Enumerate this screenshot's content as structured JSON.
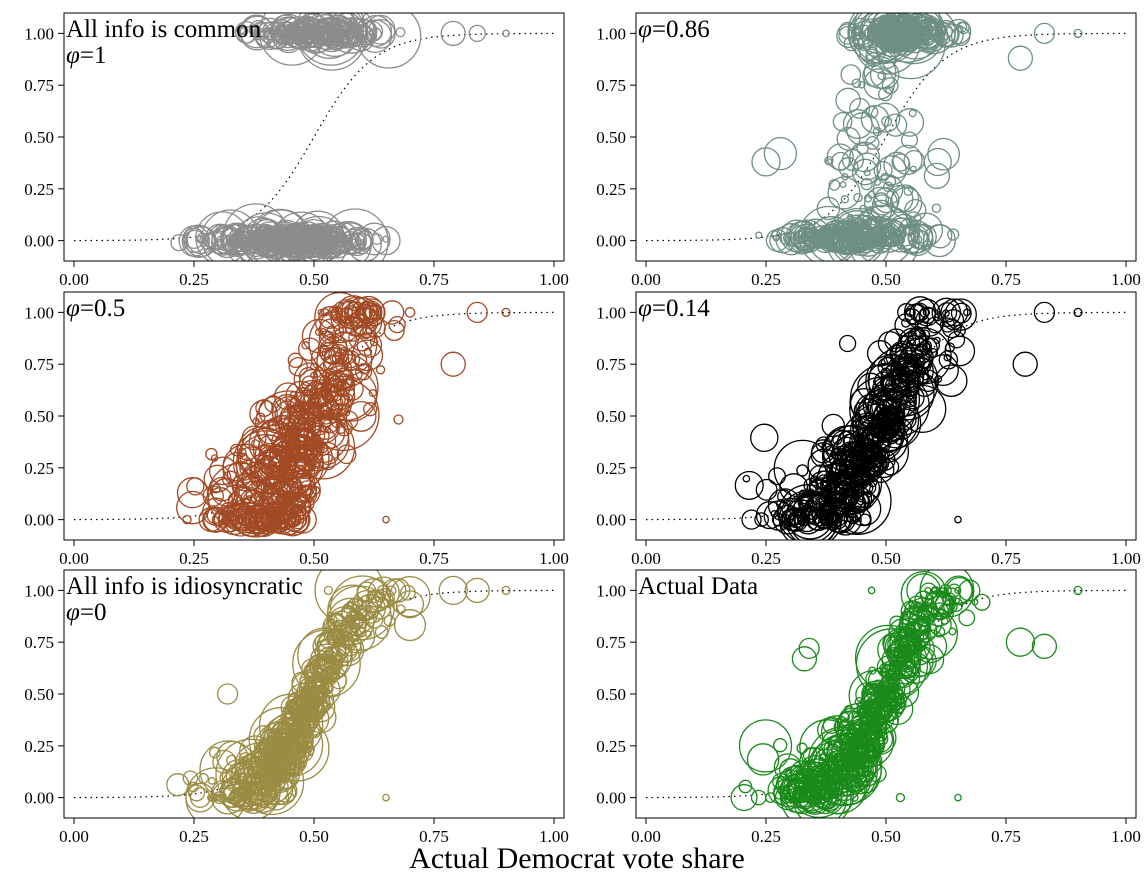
{
  "figure": {
    "xlabel": "Actual Democrat vote share"
  },
  "chart_data": [
    {
      "type": "scatter",
      "title": [
        "All info is common",
        "φ=1"
      ],
      "color": "#8c8c8c",
      "xlim": [
        0,
        1
      ],
      "ylim": [
        -0.05,
        1.05
      ],
      "xticks": [
        "0.00",
        "0.25",
        "0.50",
        "0.75",
        "1.00"
      ],
      "yticks": [
        "0.00",
        "0.25",
        "0.50",
        "0.75",
        "1.00"
      ],
      "pattern": "common",
      "points": [
        [
          0.79,
          1.0,
          0.3
        ],
        [
          0.84,
          1.0,
          0.2
        ],
        [
          0.9,
          1.0,
          0.08
        ],
        [
          0.65,
          0.0,
          0.35
        ]
      ]
    },
    {
      "type": "scatter",
      "title": [
        "φ=0.86"
      ],
      "color": "#6f8f84",
      "xlim": [
        0,
        1
      ],
      "ylim": [
        -0.05,
        1.05
      ],
      "xticks": [
        "0.00",
        "0.25",
        "0.50",
        "0.75",
        "1.00"
      ],
      "yticks": [
        "0.00",
        "0.25",
        "0.50",
        "0.75",
        "1.00"
      ],
      "pattern": "mostly_common",
      "points": [
        [
          0.83,
          1.0,
          0.25
        ],
        [
          0.9,
          1.0,
          0.1
        ],
        [
          0.78,
          0.88,
          0.3
        ],
        [
          0.25,
          0.38,
          0.35
        ],
        [
          0.28,
          0.42,
          0.4
        ]
      ]
    },
    {
      "type": "scatter",
      "title": [
        "φ=0.5"
      ],
      "color": "#a24a25",
      "xlim": [
        0,
        1
      ],
      "ylim": [
        -0.05,
        1.05
      ],
      "xticks": [
        "0.00",
        "0.25",
        "0.50",
        "0.75",
        "1.00"
      ],
      "yticks": [
        "0.00",
        "0.25",
        "0.50",
        "0.75",
        "1.00"
      ],
      "pattern": "mixed",
      "points": [
        [
          0.84,
          1.0,
          0.25
        ],
        [
          0.9,
          1.0,
          0.1
        ],
        [
          0.79,
          0.75,
          0.3
        ],
        [
          0.65,
          0.0,
          0.08
        ]
      ]
    },
    {
      "type": "scatter",
      "title": [
        "φ=0.14"
      ],
      "color": "#000000",
      "xlim": [
        0,
        1
      ],
      "ylim": [
        -0.05,
        1.05
      ],
      "xticks": [
        "0.00",
        "0.25",
        "0.50",
        "0.75",
        "1.00"
      ],
      "yticks": [
        "0.00",
        "0.25",
        "0.50",
        "0.75",
        "1.00"
      ],
      "pattern": "mostly_idio",
      "points": [
        [
          0.83,
          1.0,
          0.25
        ],
        [
          0.9,
          1.0,
          0.1
        ],
        [
          0.79,
          0.75,
          0.3
        ],
        [
          0.65,
          0.0,
          0.08
        ],
        [
          0.42,
          0.85,
          0.2
        ]
      ]
    },
    {
      "type": "scatter",
      "title": [
        "All info is idiosyncratic",
        "φ=0"
      ],
      "color": "#9b8c44",
      "xlim": [
        0,
        1
      ],
      "ylim": [
        -0.05,
        1.05
      ],
      "xticks": [
        "0.00",
        "0.25",
        "0.50",
        "0.75",
        "1.00"
      ],
      "yticks": [
        "0.00",
        "0.25",
        "0.50",
        "0.75",
        "1.00"
      ],
      "pattern": "idio",
      "points": [
        [
          0.79,
          1.0,
          0.35
        ],
        [
          0.84,
          1.0,
          0.3
        ],
        [
          0.9,
          1.0,
          0.1
        ],
        [
          0.7,
          0.97,
          0.5
        ],
        [
          0.53,
          1.0,
          0.1
        ],
        [
          0.32,
          0.5,
          0.25
        ],
        [
          0.45,
          0.0,
          0.1
        ],
        [
          0.65,
          0.0,
          0.08
        ],
        [
          0.4,
          0.0,
          0.1
        ]
      ]
    },
    {
      "type": "scatter",
      "title": [
        "Actual Data"
      ],
      "color": "#1a8a1a",
      "xlim": [
        0,
        1
      ],
      "ylim": [
        -0.05,
        1.05
      ],
      "xticks": [
        "0.00",
        "0.25",
        "0.50",
        "0.75",
        "1.00"
      ],
      "yticks": [
        "0.00",
        "0.25",
        "0.50",
        "0.75",
        "1.00"
      ],
      "pattern": "actual",
      "points": [
        [
          0.9,
          1.0,
          0.1
        ],
        [
          0.78,
          0.75,
          0.35
        ],
        [
          0.83,
          0.73,
          0.3
        ],
        [
          0.47,
          1.0,
          0.08
        ],
        [
          0.65,
          0.0,
          0.08
        ],
        [
          0.53,
          0.0,
          0.1
        ],
        [
          0.33,
          0.67,
          0.3
        ],
        [
          0.34,
          0.72,
          0.25
        ]
      ]
    }
  ]
}
